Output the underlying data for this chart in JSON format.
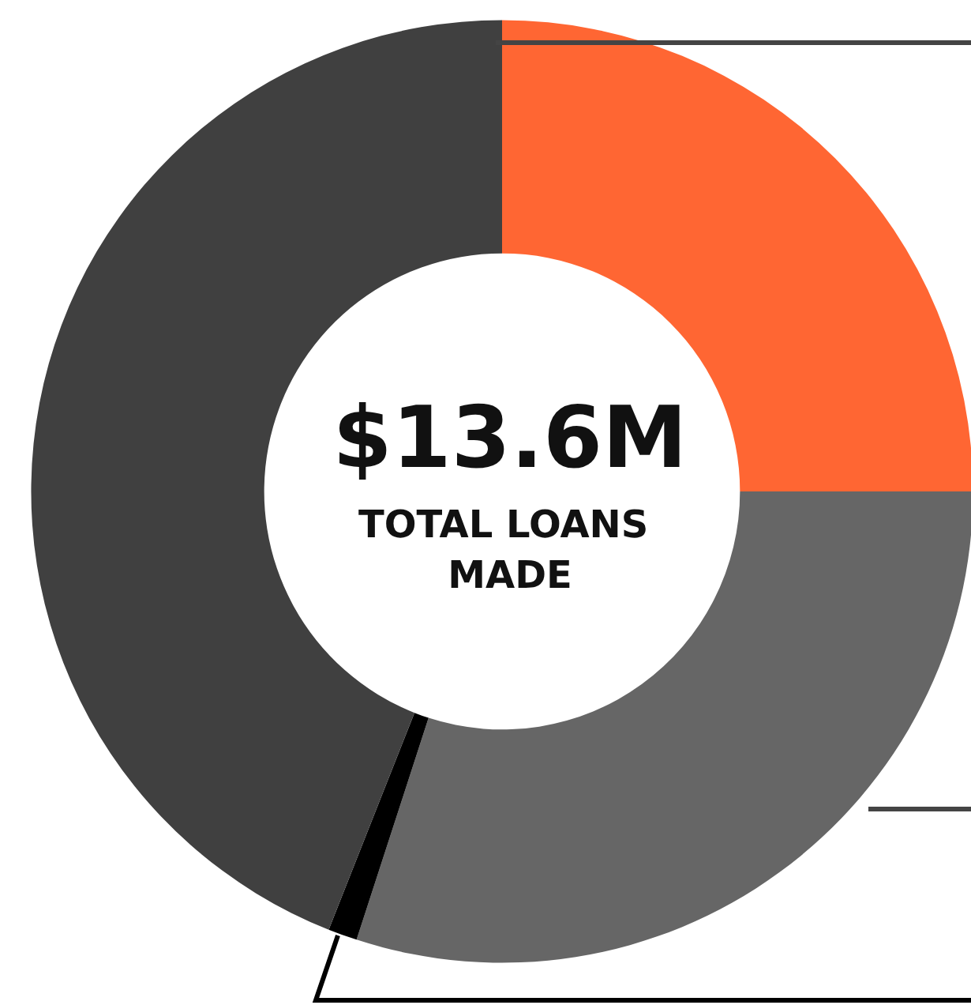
{
  "chart_data": {
    "type": "donut",
    "title": "$13.6M",
    "subtitle": "TOTAL LOANS MADE",
    "categories": [
      null,
      null,
      null,
      null
    ],
    "values": [
      25,
      30,
      1,
      44
    ],
    "colors": [
      "#ff6633",
      "#666666",
      "#000000",
      "#404040"
    ]
  }
}
